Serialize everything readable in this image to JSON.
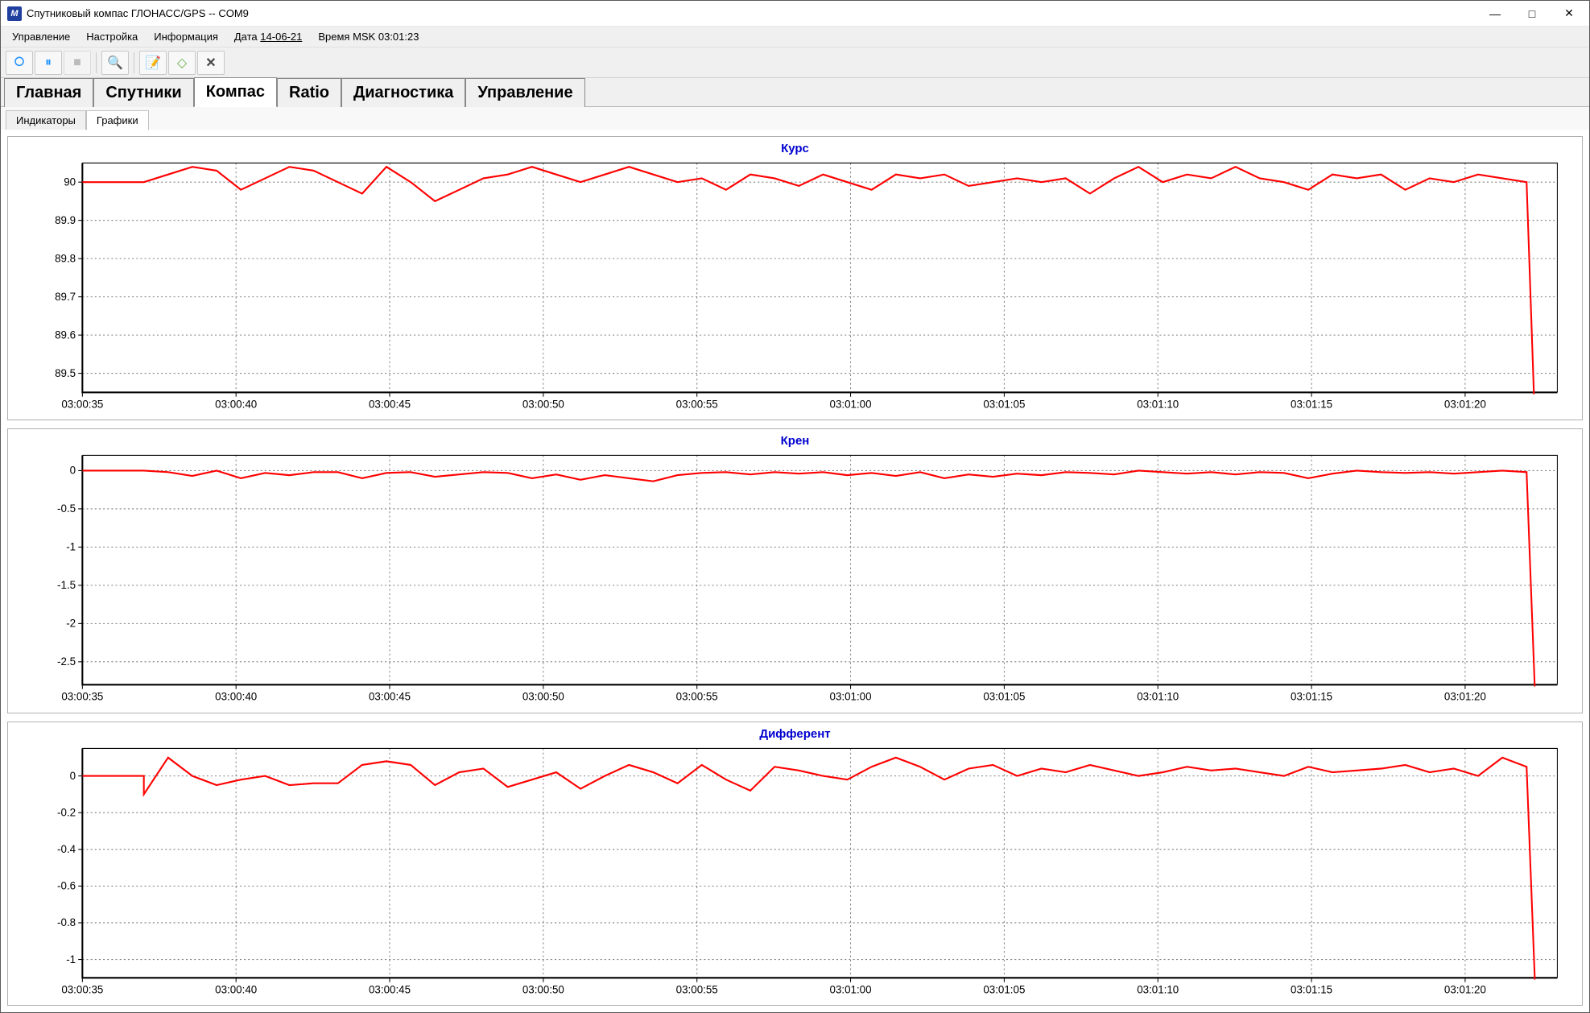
{
  "window": {
    "title": "Спутниковый компас ГЛОНАСС/GPS -- COM9",
    "app_icon_text": "M"
  },
  "menubar": {
    "items": [
      "Управление",
      "Настройка",
      "Информация"
    ],
    "date_label": "Дата",
    "date_value": "14-06-21",
    "time_label": "Время MSK",
    "time_value": "03:01:23"
  },
  "toolbar": {
    "buttons": [
      {
        "name": "play-icon",
        "glyph": "⭘",
        "color": "#1e90ff"
      },
      {
        "name": "pause-icon",
        "glyph": "⏸",
        "color": "#1e90ff"
      },
      {
        "name": "stop-icon",
        "glyph": "■",
        "color": "#888888",
        "disabled": true
      },
      {
        "sep": true
      },
      {
        "name": "zoom-icon",
        "glyph": "🔍",
        "color": "#000000"
      },
      {
        "sep": true
      },
      {
        "name": "edit-icon",
        "glyph": "📝",
        "color": "#000000"
      },
      {
        "name": "book-icon",
        "glyph": "◇",
        "color": "#6ab04c"
      },
      {
        "name": "tools-icon",
        "glyph": "✕",
        "color": "#444444",
        "bold": true
      }
    ]
  },
  "tabs_main": [
    {
      "label": "Главная",
      "active": false
    },
    {
      "label": "Спутники",
      "active": false
    },
    {
      "label": "Компас",
      "active": true
    },
    {
      "label": "Ratio",
      "active": false
    },
    {
      "label": "Диагностика",
      "active": false
    },
    {
      "label": "Управление",
      "active": false
    }
  ],
  "tabs_sub": [
    {
      "label": "Индикаторы",
      "active": false
    },
    {
      "label": "Графики",
      "active": true
    }
  ],
  "charts": {
    "common": {
      "line_color": "#ff0000",
      "grid_color": "#808080",
      "title_color": "#0000d0",
      "background_color": "#ffffff",
      "axis_color": "#000000",
      "title_fontsize": 15,
      "label_fontsize": 13,
      "x_start_sec": 35,
      "x_end_sec": 83,
      "xticks_sec": [
        35,
        40,
        45,
        50,
        55,
        60,
        65,
        70,
        75,
        80
      ],
      "xtick_labels": [
        "03:00:35",
        "03:00:40",
        "03:00:45",
        "03:00:50",
        "03:00:55",
        "03:01:00",
        "03:01:05",
        "03:01:10",
        "03:01:15",
        "03:01:20"
      ]
    },
    "panels": [
      {
        "title": "Курс",
        "ymin": 89.45,
        "ymax": 90.05,
        "yticks": [
          89.5,
          89.6,
          89.7,
          89.8,
          89.9,
          90
        ],
        "hold_start": 90.0,
        "hold_until_sec": 37,
        "series": [
          90.0,
          90.02,
          90.04,
          90.03,
          89.98,
          90.01,
          90.04,
          90.03,
          90.0,
          89.97,
          90.04,
          90.0,
          89.95,
          89.98,
          90.01,
          90.02,
          90.04,
          90.02,
          90.0,
          90.02,
          90.04,
          90.02,
          90.0,
          90.01,
          89.98,
          90.02,
          90.01,
          89.99,
          90.02,
          90.0,
          89.98,
          90.02,
          90.01,
          90.02,
          89.99,
          90.0,
          90.01,
          90.0,
          90.01,
          89.97,
          90.01,
          90.04,
          90.0,
          90.02,
          90.01,
          90.04,
          90.01,
          90.0,
          89.98,
          90.02,
          90.01,
          90.02,
          89.98,
          90.01,
          90.0,
          90.02,
          90.01,
          90.0
        ],
        "drop_to": 89.3
      },
      {
        "title": "Крен",
        "ymin": -2.8,
        "ymax": 0.2,
        "yticks": [
          -2.5,
          -2,
          -1.5,
          -1,
          -0.5,
          0
        ],
        "hold_start": 0.0,
        "hold_until_sec": 37,
        "series": [
          0.0,
          -0.02,
          -0.07,
          0.0,
          -0.1,
          -0.03,
          -0.06,
          -0.02,
          -0.02,
          -0.1,
          -0.03,
          -0.02,
          -0.08,
          -0.05,
          -0.02,
          -0.03,
          -0.1,
          -0.05,
          -0.12,
          -0.06,
          -0.1,
          -0.14,
          -0.06,
          -0.03,
          -0.02,
          -0.05,
          -0.02,
          -0.04,
          -0.02,
          -0.06,
          -0.03,
          -0.07,
          -0.02,
          -0.1,
          -0.05,
          -0.08,
          -0.04,
          -0.06,
          -0.02,
          -0.03,
          -0.05,
          0.0,
          -0.02,
          -0.04,
          -0.02,
          -0.05,
          -0.02,
          -0.03,
          -0.1,
          -0.04,
          0.0,
          -0.02,
          -0.03,
          -0.02,
          -0.04,
          -0.02,
          0.0,
          -0.02
        ],
        "drop_to": -3.2
      },
      {
        "title": "Дифферент",
        "ymin": -1.1,
        "ymax": 0.15,
        "yticks": [
          -1,
          -0.8,
          -0.6,
          -0.4,
          -0.2,
          0
        ],
        "hold_start": 0.0,
        "hold_until_sec": 37,
        "series": [
          -0.1,
          0.1,
          0.0,
          -0.05,
          -0.02,
          0.0,
          -0.05,
          -0.04,
          -0.04,
          0.06,
          0.08,
          0.06,
          -0.05,
          0.02,
          0.04,
          -0.06,
          -0.02,
          0.02,
          -0.07,
          0.0,
          0.06,
          0.02,
          -0.04,
          0.06,
          -0.02,
          -0.08,
          0.05,
          0.03,
          0.0,
          -0.02,
          0.05,
          0.1,
          0.05,
          -0.02,
          0.04,
          0.06,
          0.0,
          0.04,
          0.02,
          0.06,
          0.03,
          0.0,
          0.02,
          0.05,
          0.03,
          0.04,
          0.02,
          0.0,
          0.05,
          0.02,
          0.03,
          0.04,
          0.06,
          0.02,
          0.04,
          0.0,
          0.1,
          0.05
        ],
        "drop_to": -1.25
      }
    ]
  }
}
